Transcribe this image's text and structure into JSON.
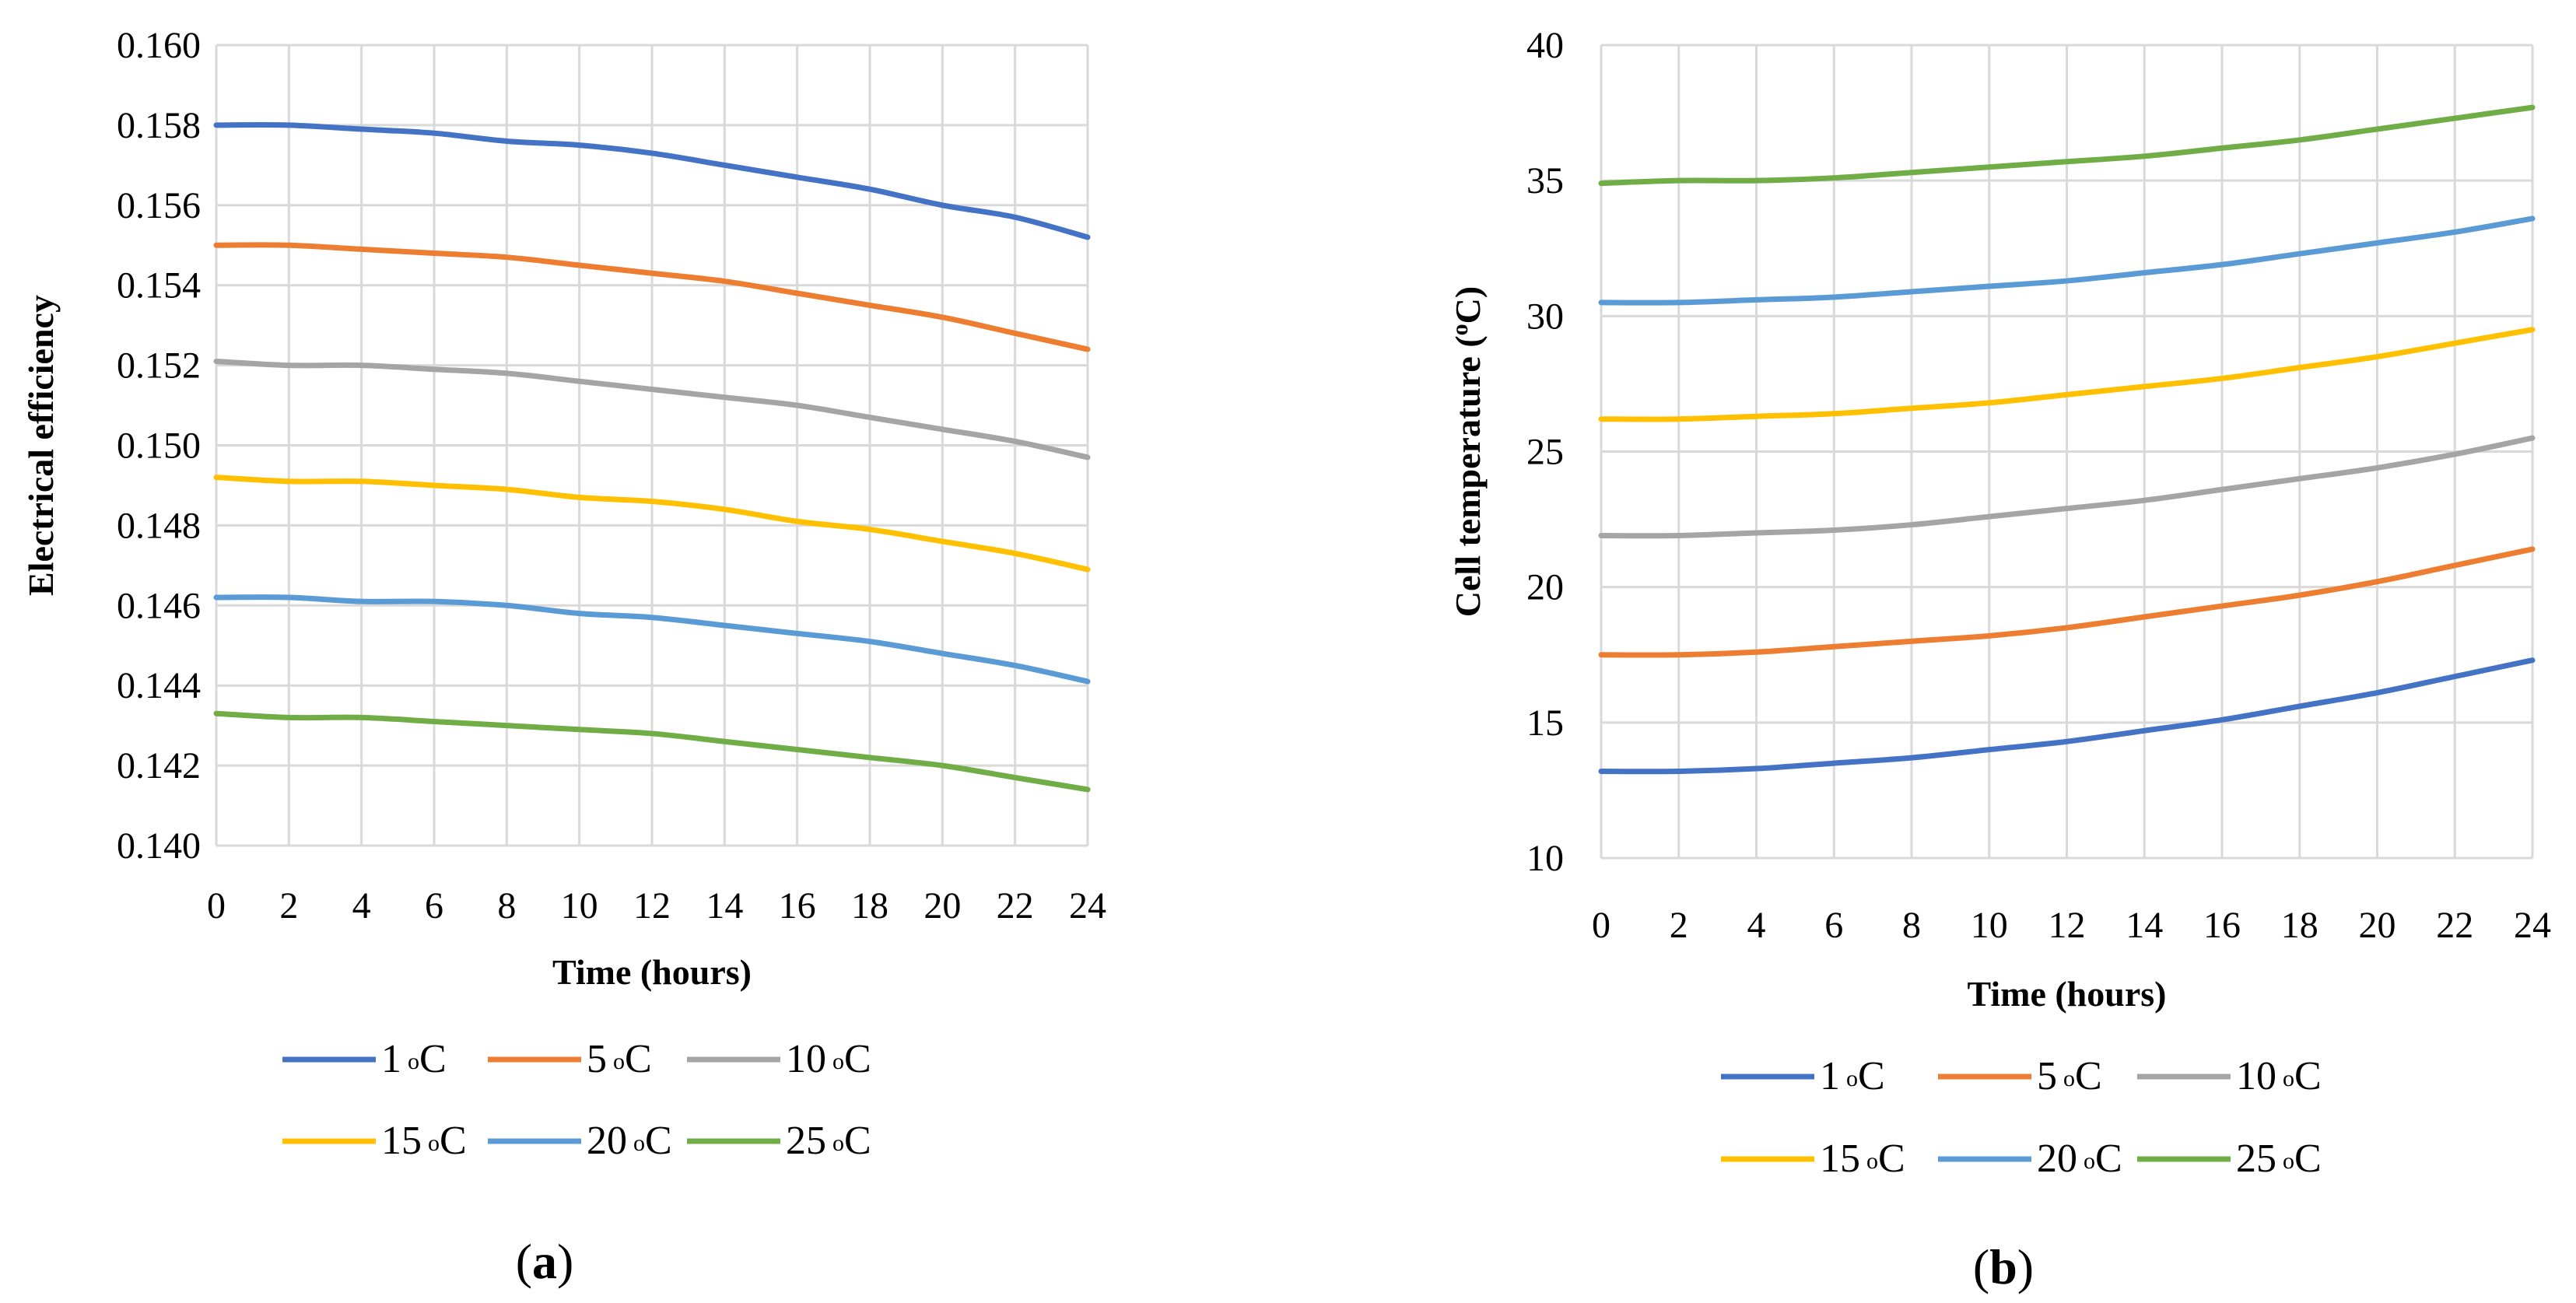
{
  "chart_data": [
    {
      "type": "line",
      "panel_label": "a",
      "title": "",
      "xlabel": "Time (hours)",
      "ylabel": "Electrical efficiency",
      "x": [
        0,
        2,
        4,
        6,
        8,
        10,
        12,
        14,
        16,
        18,
        20,
        22,
        24
      ],
      "x_ticks": [
        "0",
        "2",
        "4",
        "6",
        "8",
        "10",
        "12",
        "14",
        "16",
        "18",
        "20",
        "22",
        "24"
      ],
      "xlim": [
        0,
        24
      ],
      "ylim": [
        0.14,
        0.16
      ],
      "y_ticks": [
        "0.140",
        "0.142",
        "0.144",
        "0.146",
        "0.148",
        "0.150",
        "0.152",
        "0.154",
        "0.156",
        "0.158",
        "0.160"
      ],
      "y_tick_values": [
        0.14,
        0.142,
        0.144,
        0.146,
        0.148,
        0.15,
        0.152,
        0.154,
        0.156,
        0.158,
        0.16
      ],
      "grid": true,
      "legend_position": "bottom",
      "series": [
        {
          "name": "1",
          "unit": "o",
          "suffix": "C",
          "color": "#4472C4",
          "values": [
            0.158,
            0.158,
            0.1579,
            0.1578,
            0.1576,
            0.1575,
            0.1573,
            0.157,
            0.1567,
            0.1564,
            0.156,
            0.1557,
            0.1552
          ]
        },
        {
          "name": "5",
          "unit": "o",
          "suffix": "C",
          "color": "#ED7D31",
          "values": [
            0.155,
            0.155,
            0.1549,
            0.1548,
            0.1547,
            0.1545,
            0.1543,
            0.1541,
            0.1538,
            0.1535,
            0.1532,
            0.1528,
            0.1524
          ]
        },
        {
          "name": "10",
          "unit": "o",
          "suffix": "C",
          "color": "#A5A5A5",
          "values": [
            0.1521,
            0.152,
            0.152,
            0.1519,
            0.1518,
            0.1516,
            0.1514,
            0.1512,
            0.151,
            0.1507,
            0.1504,
            0.1501,
            0.1497
          ]
        },
        {
          "name": "15",
          "unit": "o",
          "suffix": "C",
          "color": "#FFC000",
          "values": [
            0.1492,
            0.1491,
            0.1491,
            0.149,
            0.1489,
            0.1487,
            0.1486,
            0.1484,
            0.1481,
            0.1479,
            0.1476,
            0.1473,
            0.1469
          ]
        },
        {
          "name": "20",
          "unit": "o",
          "suffix": "C",
          "color": "#5B9BD5",
          "values": [
            0.1462,
            0.1462,
            0.1461,
            0.1461,
            0.146,
            0.1458,
            0.1457,
            0.1455,
            0.1453,
            0.1451,
            0.1448,
            0.1445,
            0.1441
          ]
        },
        {
          "name": "25",
          "unit": "o",
          "suffix": "C",
          "color": "#70AD47",
          "values": [
            0.1433,
            0.1432,
            0.1432,
            0.1431,
            0.143,
            0.1429,
            0.1428,
            0.1426,
            0.1424,
            0.1422,
            0.142,
            0.1417,
            0.1414
          ]
        }
      ]
    },
    {
      "type": "line",
      "panel_label": "b",
      "title": "",
      "xlabel": "Time (hours)",
      "ylabel": "Cell temperature (",
      "ylabel_unit": "o",
      "ylabel_suffix": "C)",
      "x": [
        0,
        2,
        4,
        6,
        8,
        10,
        12,
        14,
        16,
        18,
        20,
        22,
        24
      ],
      "x_ticks": [
        "0",
        "2",
        "4",
        "6",
        "8",
        "10",
        "12",
        "14",
        "16",
        "18",
        "20",
        "22",
        "24"
      ],
      "xlim": [
        0,
        24
      ],
      "ylim": [
        10,
        40
      ],
      "y_ticks": [
        "10",
        "15",
        "20",
        "25",
        "30",
        "35",
        "40"
      ],
      "y_tick_values": [
        10,
        15,
        20,
        25,
        30,
        35,
        40
      ],
      "grid": true,
      "legend_position": "bottom",
      "series": [
        {
          "name": "1",
          "unit": "o",
          "suffix": "C",
          "color": "#4472C4",
          "values": [
            13.2,
            13.2,
            13.3,
            13.5,
            13.7,
            14.0,
            14.3,
            14.7,
            15.1,
            15.6,
            16.1,
            16.7,
            17.3
          ]
        },
        {
          "name": "5",
          "unit": "o",
          "suffix": "C",
          "color": "#ED7D31",
          "values": [
            17.5,
            17.5,
            17.6,
            17.8,
            18.0,
            18.2,
            18.5,
            18.9,
            19.3,
            19.7,
            20.2,
            20.8,
            21.4
          ]
        },
        {
          "name": "10",
          "unit": "o",
          "suffix": "C",
          "color": "#A5A5A5",
          "values": [
            21.9,
            21.9,
            22.0,
            22.1,
            22.3,
            22.6,
            22.9,
            23.2,
            23.6,
            24.0,
            24.4,
            24.9,
            25.5
          ]
        },
        {
          "name": "15",
          "unit": "o",
          "suffix": "C",
          "color": "#FFC000",
          "values": [
            26.2,
            26.2,
            26.3,
            26.4,
            26.6,
            26.8,
            27.1,
            27.4,
            27.7,
            28.1,
            28.5,
            29.0,
            29.5
          ]
        },
        {
          "name": "20",
          "unit": "o",
          "suffix": "C",
          "color": "#5B9BD5",
          "values": [
            30.5,
            30.5,
            30.6,
            30.7,
            30.9,
            31.1,
            31.3,
            31.6,
            31.9,
            32.3,
            32.7,
            33.1,
            33.6
          ]
        },
        {
          "name": "25",
          "unit": "o",
          "suffix": "C",
          "color": "#70AD47",
          "values": [
            34.9,
            35.0,
            35.0,
            35.1,
            35.3,
            35.5,
            35.7,
            35.9,
            36.2,
            36.5,
            36.9,
            37.3,
            37.7
          ]
        }
      ]
    }
  ]
}
